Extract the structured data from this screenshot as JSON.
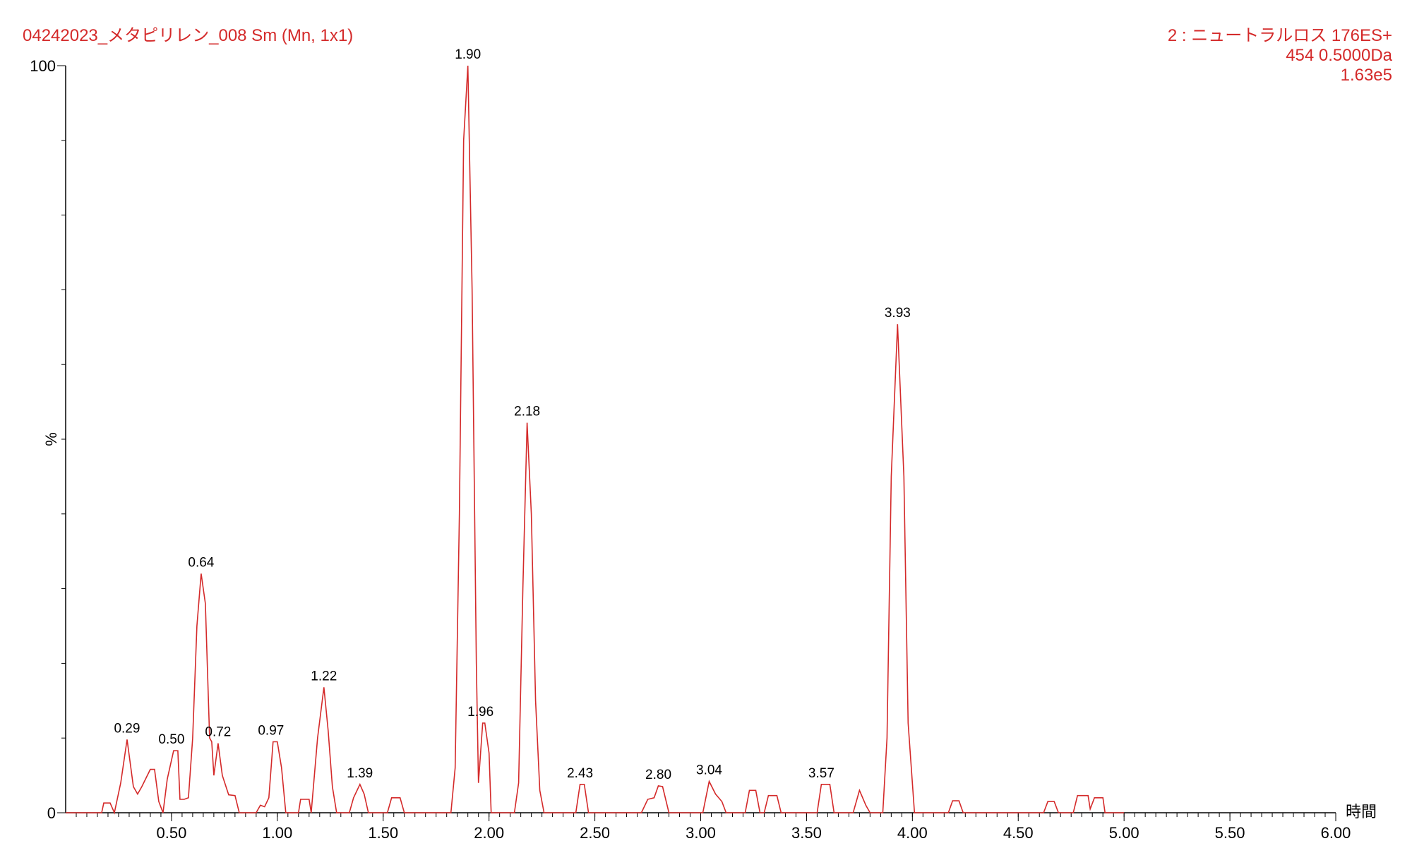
{
  "chart_data": {
    "type": "line",
    "title": "04242023_メタピリレン_008 Sm (Mn, 1x1)",
    "header_lines": [
      "2 : ニュートラルロス 176ES+",
      "454 0.5000Da",
      "1.63e5"
    ],
    "xlabel": "時間",
    "ylabel": "%",
    "color": "#d42a2a",
    "xlim": [
      0,
      6
    ],
    "ylim": [
      0,
      100
    ],
    "xticks": [
      {
        "value": 0.5,
        "label": "0.50"
      },
      {
        "value": 1,
        "label": "1.00"
      },
      {
        "value": 1.5,
        "label": "1.50"
      },
      {
        "value": 2,
        "label": "2.00"
      },
      {
        "value": 2.5,
        "label": "2.50"
      },
      {
        "value": 3,
        "label": "3.00"
      },
      {
        "value": 3.5,
        "label": "3.50"
      },
      {
        "value": 4,
        "label": "4.00"
      },
      {
        "value": 4.5,
        "label": "4.50"
      },
      {
        "value": 5,
        "label": "5.00"
      },
      {
        "value": 5.5,
        "label": "5.50"
      },
      {
        "value": 6,
        "label": "6.00"
      }
    ],
    "yticks": [
      0,
      100
    ],
    "x": [
      0,
      0.17,
      0.18,
      0.21,
      0.23,
      0.26,
      0.29,
      0.32,
      0.34,
      0.36,
      0.4,
      0.42,
      0.44,
      0.46,
      0.48,
      0.51,
      0.53,
      0.54,
      0.56,
      0.58,
      0.6,
      0.62,
      0.64,
      0.66,
      0.68,
      0.69,
      0.7,
      0.72,
      0.74,
      0.77,
      0.8,
      0.82,
      0.9,
      0.92,
      0.94,
      0.96,
      0.98,
      1.0,
      1.02,
      1.04,
      1.1,
      1.11,
      1.15,
      1.16,
      1.19,
      1.22,
      1.24,
      1.26,
      1.28,
      1.34,
      1.36,
      1.39,
      1.41,
      1.43,
      1.52,
      1.54,
      1.58,
      1.6,
      1.82,
      1.84,
      1.86,
      1.88,
      1.9,
      1.92,
      1.94,
      1.95,
      1.97,
      1.98,
      2.0,
      2.01,
      2.12,
      2.14,
      2.16,
      2.18,
      2.2,
      2.22,
      2.24,
      2.26,
      2.41,
      2.43,
      2.45,
      2.47,
      2.72,
      2.75,
      2.78,
      2.8,
      2.82,
      2.85,
      3.01,
      3.04,
      3.07,
      3.1,
      3.12,
      3.21,
      3.23,
      3.26,
      3.28,
      3.3,
      3.32,
      3.36,
      3.38,
      3.55,
      3.57,
      3.61,
      3.63,
      3.72,
      3.75,
      3.78,
      3.8,
      3.86,
      3.88,
      3.9,
      3.93,
      3.96,
      3.98,
      4.01,
      4.17,
      4.19,
      4.22,
      4.24,
      4.62,
      4.64,
      4.67,
      4.69,
      4.76,
      4.78,
      4.83,
      4.84,
      4.86,
      4.9,
      4.91,
      5.0
    ],
    "y": [
      0,
      0,
      1.3,
      1.3,
      0,
      4,
      9.8,
      3.5,
      2.5,
      3.5,
      5.8,
      5.8,
      1.5,
      0,
      4.5,
      8.3,
      8.3,
      1.8,
      1.8,
      2,
      10,
      25,
      32,
      28,
      10,
      9.5,
      5,
      9.3,
      5,
      2.4,
      2.3,
      0,
      0,
      1,
      0.8,
      2,
      9.5,
      9.5,
      6,
      0,
      0,
      1.8,
      1.8,
      0,
      10,
      16.8,
      11,
      3.5,
      0,
      0,
      2,
      3.8,
      2.5,
      0,
      0,
      2,
      2,
      0,
      0,
      6,
      40,
      90,
      100,
      70,
      20,
      4,
      12,
      12,
      8,
      0,
      0,
      4,
      30,
      52.2,
      40,
      15,
      3,
      0,
      0,
      3.8,
      3.8,
      0,
      0,
      1.8,
      2,
      3.6,
      3.5,
      0,
      0,
      4.2,
      2.5,
      1.5,
      0,
      0,
      3,
      3,
      0,
      0,
      2.3,
      2.3,
      0,
      0,
      3.8,
      3.8,
      0,
      0,
      3,
      1,
      0,
      0,
      10,
      45,
      65.4,
      45,
      12,
      0,
      0,
      1.6,
      1.6,
      0,
      0,
      1.5,
      1.5,
      0,
      0,
      2.3,
      2.3,
      0.5,
      2,
      2,
      0,
      0
    ],
    "annotations": [
      {
        "text": "0.29",
        "x": 0.29,
        "y": 9.8
      },
      {
        "text": "0.50",
        "x": 0.5,
        "y": 8.3
      },
      {
        "text": "0.64",
        "x": 0.64,
        "y": 32
      },
      {
        "text": "0.72",
        "x": 0.72,
        "y": 9.3
      },
      {
        "text": "0.97",
        "x": 0.97,
        "y": 9.5
      },
      {
        "text": "1.22",
        "x": 1.22,
        "y": 16.8
      },
      {
        "text": "1.39",
        "x": 1.39,
        "y": 3.8
      },
      {
        "text": "1.90",
        "x": 1.9,
        "y": 100
      },
      {
        "text": "1.96",
        "x": 1.96,
        "y": 12
      },
      {
        "text": "2.18",
        "x": 2.18,
        "y": 52.2
      },
      {
        "text": "2.43",
        "x": 2.43,
        "y": 3.8
      },
      {
        "text": "2.80",
        "x": 2.8,
        "y": 3.6
      },
      {
        "text": "3.04",
        "x": 3.04,
        "y": 4.2
      },
      {
        "text": "3.57",
        "x": 3.57,
        "y": 3.8
      },
      {
        "text": "3.93",
        "x": 3.93,
        "y": 65.4
      }
    ]
  }
}
